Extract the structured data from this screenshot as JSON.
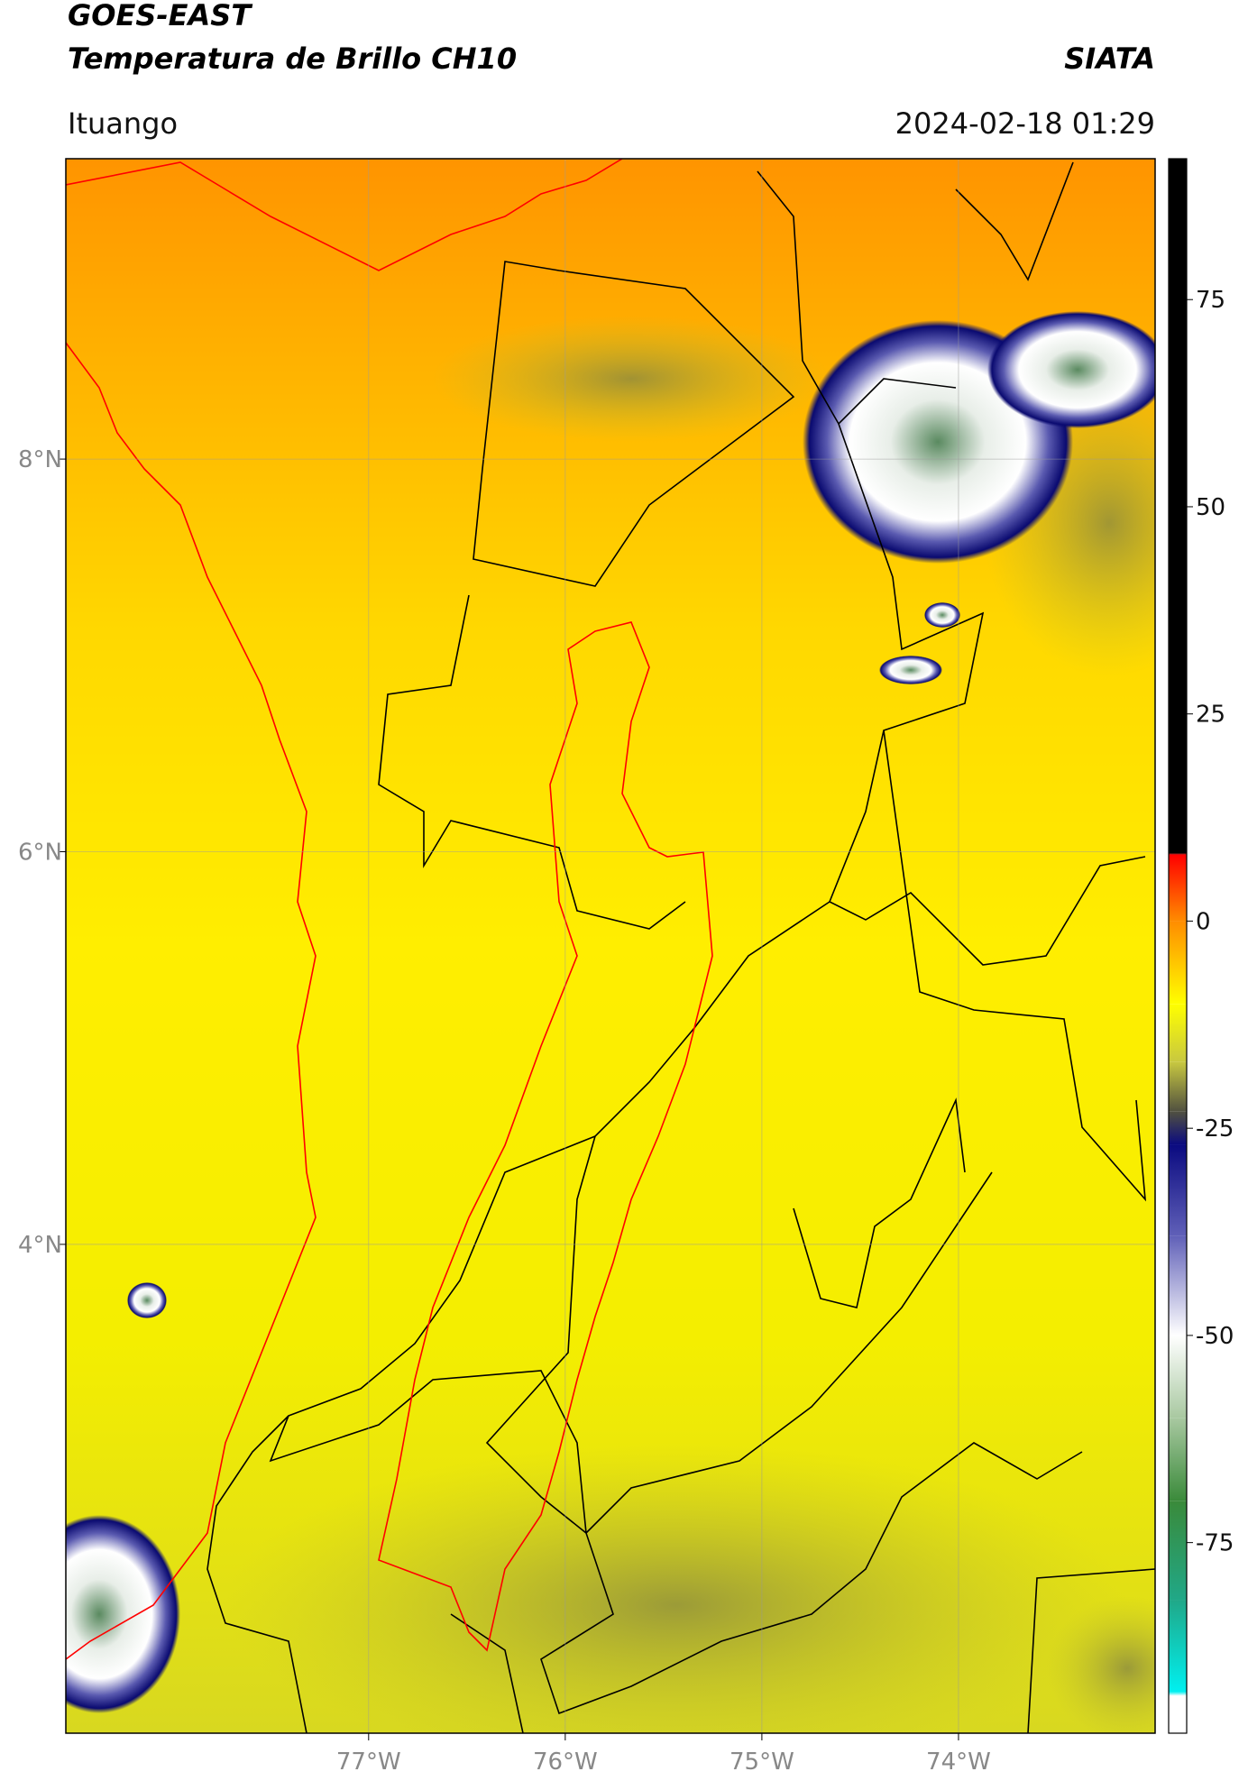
{
  "header": {
    "title": "GOES-EAST",
    "subtitle": "Temperatura de Brillo CH10",
    "org": "SIATA",
    "location": "Ituango",
    "datetime": "2024-02-18 01:29"
  },
  "map": {
    "xlim": [
      -78.54,
      -73.0
    ],
    "ylim": [
      1.51,
      9.53
    ],
    "xticks": [
      {
        "value": -77,
        "label": "77°W"
      },
      {
        "value": -76,
        "label": "76°W"
      },
      {
        "value": -75,
        "label": "75°W"
      },
      {
        "value": -74,
        "label": "74°W"
      }
    ],
    "yticks": [
      {
        "value": 8,
        "label": "8°N"
      },
      {
        "value": 6,
        "label": "6°N"
      },
      {
        "value": 4,
        "label": "4°N"
      }
    ],
    "grid": true
  },
  "colorbar": {
    "lim": [
      -98,
      92
    ],
    "ticks": [
      75,
      50,
      25,
      0,
      -25,
      -50,
      -75
    ],
    "colormap": [
      {
        "value": 92,
        "color": "#000000"
      },
      {
        "value": 8.2,
        "color": "#000000"
      },
      {
        "value": 8,
        "color": "#ff0000"
      },
      {
        "value": 0,
        "color": "#ff8c00"
      },
      {
        "value": -10,
        "color": "#ffff00"
      },
      {
        "value": -17,
        "color": "#c8c840"
      },
      {
        "value": -23,
        "color": "#505040"
      },
      {
        "value": -27,
        "color": "#0a0a80"
      },
      {
        "value": -38,
        "color": "#6060b8"
      },
      {
        "value": -50,
        "color": "#ffffff"
      },
      {
        "value": -60,
        "color": "#a8c8a0"
      },
      {
        "value": -70,
        "color": "#3a8a3a"
      },
      {
        "value": -82,
        "color": "#20a888"
      },
      {
        "value": -93,
        "color": "#00f0f0"
      },
      {
        "value": -93.5,
        "color": "#ffffff"
      },
      {
        "value": -98,
        "color": "#ffffff"
      }
    ]
  }
}
